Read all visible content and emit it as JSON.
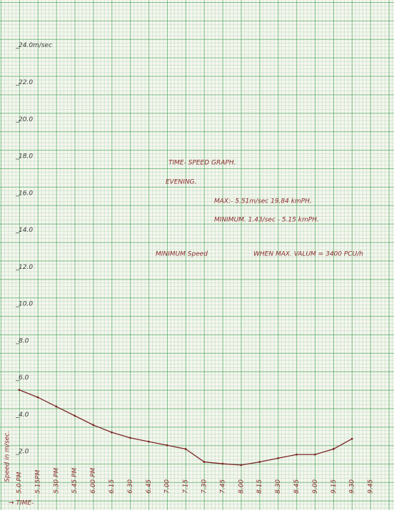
{
  "chart_data": {
    "type": "line",
    "title": "TIME- SPEED GRAPH.",
    "subtitle": "EVENING.",
    "annotations": [
      "MAX:- 5.51m/sec 19.84 kmPH.",
      "MINIMUM. 1.43/sec - 5.15 kmPH.",
      "MINIMUM Speed",
      "WHEN MAX. VALUM = 3400 PCU/h"
    ],
    "x_label": "→ TIME-",
    "y_label": "Speed in m/sec.",
    "categories": [
      "5.0 PM",
      "5.15PM",
      "5.30 PM",
      "5.45 PM",
      "6.00 PM",
      "6.15",
      "6.30",
      "6.45",
      "7.00",
      "7.15",
      "7.30",
      "7.45",
      "8.00",
      "8.15",
      "8.30",
      "8.45",
      "9.00",
      "9.15",
      "9.30",
      "9.45"
    ],
    "series": [
      {
        "name": "Speed",
        "color": "#7a2626",
        "values": [
          5.5,
          5.1,
          4.6,
          4.1,
          3.6,
          3.2,
          2.9,
          2.7,
          2.5,
          2.3,
          1.6,
          1.5,
          1.43,
          1.6,
          1.8,
          2.0,
          2.0,
          2.3,
          2.85,
          null
        ]
      }
    ],
    "ylim": [
      0,
      26.5
    ],
    "yticks": [
      {
        "value": 2,
        "label": "2.0"
      },
      {
        "value": 4,
        "label": "4.0"
      },
      {
        "value": 6,
        "label": "6.0"
      },
      {
        "value": 8,
        "label": "8.0"
      },
      {
        "value": 10,
        "label": "10.0"
      },
      {
        "value": 12,
        "label": "12.0"
      },
      {
        "value": 14,
        "label": "14.0"
      },
      {
        "value": 16,
        "label": "16.0"
      },
      {
        "value": 18,
        "label": "18.0"
      },
      {
        "value": 20,
        "label": "20.0"
      },
      {
        "value": 22,
        "label": "22.0"
      },
      {
        "value": 24,
        "label": "24.0m/sec"
      }
    ]
  }
}
